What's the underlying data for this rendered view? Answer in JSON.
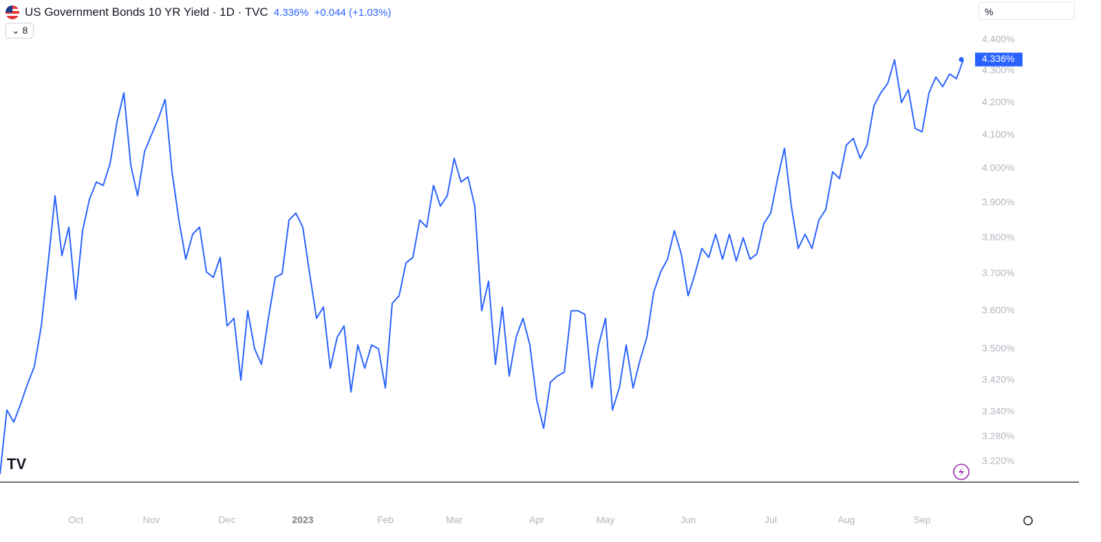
{
  "header": {
    "title": "US Government Bonds 10 YR Yield · 1D · TVC",
    "last": "4.336%",
    "change": "+0.044 (+1.03%)",
    "indicator_count": "8",
    "scale_mode": "%"
  },
  "chart_data": {
    "type": "line",
    "log": true,
    "color": "#2962ff",
    "ylim": [
      3.171,
      4.44
    ],
    "yticks": [
      {
        "value": 3.22,
        "label": "3.220%"
      },
      {
        "value": 3.28,
        "label": "3.280%"
      },
      {
        "value": 3.34,
        "label": "3.340%"
      },
      {
        "value": 3.42,
        "label": "3.420%"
      },
      {
        "value": 3.5,
        "label": "3.500%"
      },
      {
        "value": 3.6,
        "label": "3.600%"
      },
      {
        "value": 3.7,
        "label": "3.700%"
      },
      {
        "value": 3.8,
        "label": "3.800%"
      },
      {
        "value": 3.9,
        "label": "3.900%"
      },
      {
        "value": 4.0,
        "label": "4.000%"
      },
      {
        "value": 4.1,
        "label": "4.100%"
      },
      {
        "value": 4.2,
        "label": "4.200%"
      },
      {
        "value": 4.3,
        "label": "4.300%"
      },
      {
        "value": 4.4,
        "label": "4.400%"
      }
    ],
    "categories": [
      null,
      null,
      null,
      null,
      null,
      null,
      null,
      null,
      null,
      null,
      null,
      "Oct",
      null,
      null,
      null,
      null,
      null,
      null,
      null,
      null,
      null,
      null,
      "Nov",
      null,
      null,
      null,
      null,
      null,
      null,
      null,
      null,
      null,
      null,
      "Dec",
      null,
      null,
      null,
      null,
      null,
      null,
      null,
      null,
      null,
      null,
      "2023",
      null,
      null,
      null,
      null,
      null,
      null,
      null,
      null,
      null,
      null,
      null,
      "Feb",
      null,
      null,
      null,
      null,
      null,
      null,
      null,
      null,
      null,
      "Mar",
      null,
      null,
      null,
      null,
      null,
      null,
      null,
      null,
      null,
      null,
      null,
      "Apr",
      null,
      null,
      null,
      null,
      null,
      null,
      null,
      null,
      null,
      "May",
      null,
      null,
      null,
      null,
      null,
      null,
      null,
      null,
      null,
      null,
      null,
      "Jun",
      null,
      null,
      null,
      null,
      null,
      null,
      null,
      null,
      null,
      null,
      null,
      "Jul",
      null,
      null,
      null,
      null,
      null,
      null,
      null,
      null,
      null,
      null,
      "Aug",
      null,
      null,
      null,
      null,
      null,
      null,
      null,
      null,
      null,
      null,
      "Sep",
      null,
      null,
      null,
      null,
      null,
      null
    ],
    "values": [
      3.19,
      3.345,
      3.315,
      3.36,
      3.41,
      3.455,
      3.56,
      3.73,
      3.92,
      3.75,
      3.83,
      3.63,
      3.82,
      3.91,
      3.96,
      3.95,
      4.015,
      4.14,
      4.23,
      4.01,
      3.92,
      4.05,
      4.1,
      4.15,
      4.21,
      3.99,
      3.85,
      3.74,
      3.81,
      3.83,
      3.705,
      3.69,
      3.745,
      3.56,
      3.58,
      3.42,
      3.6,
      3.5,
      3.46,
      3.58,
      3.69,
      3.7,
      3.85,
      3.87,
      3.83,
      3.7,
      3.58,
      3.61,
      3.45,
      3.53,
      3.56,
      3.39,
      3.51,
      3.45,
      3.51,
      3.5,
      3.4,
      3.62,
      3.64,
      3.73,
      3.745,
      3.85,
      3.83,
      3.95,
      3.89,
      3.92,
      4.03,
      3.96,
      3.975,
      3.89,
      3.6,
      3.68,
      3.46,
      3.61,
      3.43,
      3.53,
      3.58,
      3.51,
      3.37,
      3.3,
      3.415,
      3.43,
      3.44,
      3.6,
      3.6,
      3.59,
      3.4,
      3.51,
      3.58,
      3.345,
      3.4,
      3.51,
      3.4,
      3.47,
      3.53,
      3.65,
      3.705,
      3.74,
      3.82,
      3.755,
      3.64,
      3.7,
      3.77,
      3.745,
      3.81,
      3.74,
      3.81,
      3.735,
      3.8,
      3.74,
      3.755,
      3.84,
      3.87,
      3.97,
      4.06,
      3.89,
      3.77,
      3.81,
      3.77,
      3.85,
      3.88,
      3.99,
      3.97,
      4.07,
      4.09,
      4.03,
      4.07,
      4.19,
      4.23,
      4.26,
      4.335,
      4.2,
      4.24,
      4.12,
      4.11,
      4.23,
      4.28,
      4.25,
      4.29,
      4.275,
      4.336
    ]
  }
}
